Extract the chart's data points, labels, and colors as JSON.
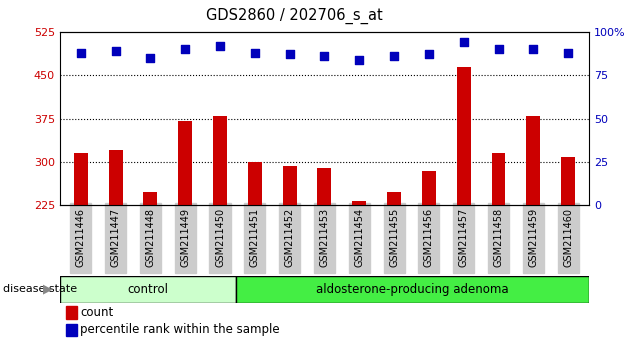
{
  "title": "GDS2860 / 202706_s_at",
  "samples": [
    "GSM211446",
    "GSM211447",
    "GSM211448",
    "GSM211449",
    "GSM211450",
    "GSM211451",
    "GSM211452",
    "GSM211453",
    "GSM211454",
    "GSM211455",
    "GSM211456",
    "GSM211457",
    "GSM211458",
    "GSM211459",
    "GSM211460"
  ],
  "counts": [
    315,
    320,
    248,
    370,
    380,
    300,
    293,
    290,
    232,
    248,
    285,
    465,
    315,
    380,
    308
  ],
  "percentiles": [
    88,
    89,
    85,
    90,
    92,
    88,
    87,
    86,
    84,
    86,
    87,
    94,
    90,
    90,
    88
  ],
  "control_count": 5,
  "ylim_left": [
    225,
    525
  ],
  "ylim_right": [
    0,
    100
  ],
  "yticks_left": [
    225,
    300,
    375,
    450,
    525
  ],
  "yticks_right": [
    0,
    25,
    50,
    75,
    100
  ],
  "bar_color": "#cc0000",
  "dot_color": "#0000bb",
  "control_bg": "#ccffcc",
  "adenoma_bg": "#44ee44",
  "tick_bg": "#cccccc",
  "control_label": "control",
  "adenoma_label": "aldosterone-producing adenoma",
  "disease_state_label": "disease state",
  "legend_count": "count",
  "legend_percentile": "percentile rank within the sample",
  "tick_label_color_left": "#cc0000",
  "tick_label_color_right": "#0000bb",
  "bar_width": 0.4,
  "dot_size": 30
}
